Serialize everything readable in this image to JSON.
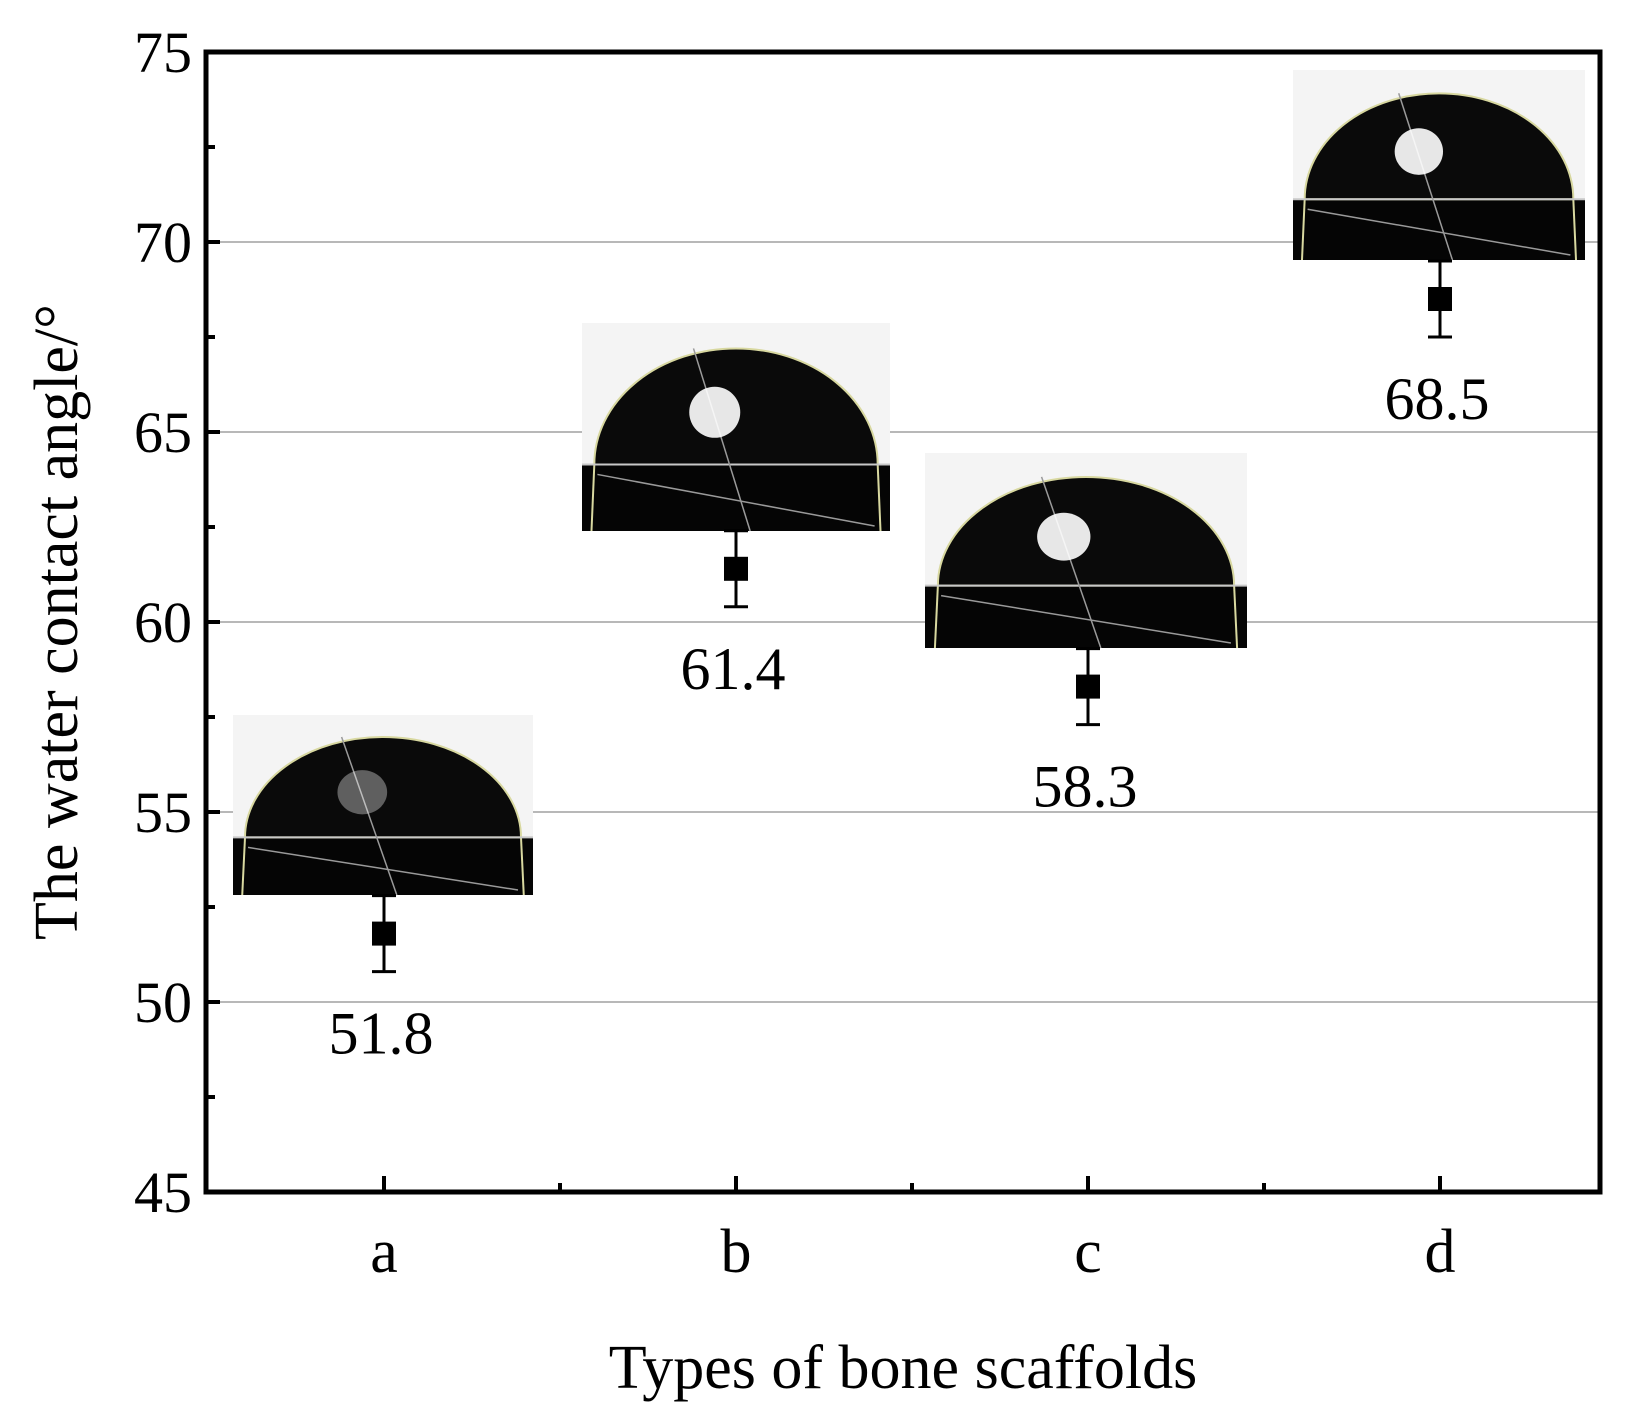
{
  "chart_data": {
    "type": "scatter",
    "title": "",
    "xlabel": "Types of bone scaffolds",
    "ylabel": "The water contact angle/°",
    "categories": [
      "a",
      "b",
      "c",
      "d"
    ],
    "values": [
      51.8,
      61.4,
      58.3,
      68.5
    ],
    "errors": [
      1.0,
      1.0,
      1.0,
      1.0
    ],
    "data_labels": [
      "51.8",
      "61.4",
      "58.3",
      "68.5"
    ],
    "ylim": [
      45,
      75
    ],
    "yticks": [
      45,
      50,
      55,
      60,
      65,
      70,
      75
    ],
    "grid": true,
    "legend": "none",
    "marker": "square",
    "marker_color": "#000000",
    "grid_color": "#a0a0a0",
    "insets": "droplet contact-angle photographs above each point"
  }
}
